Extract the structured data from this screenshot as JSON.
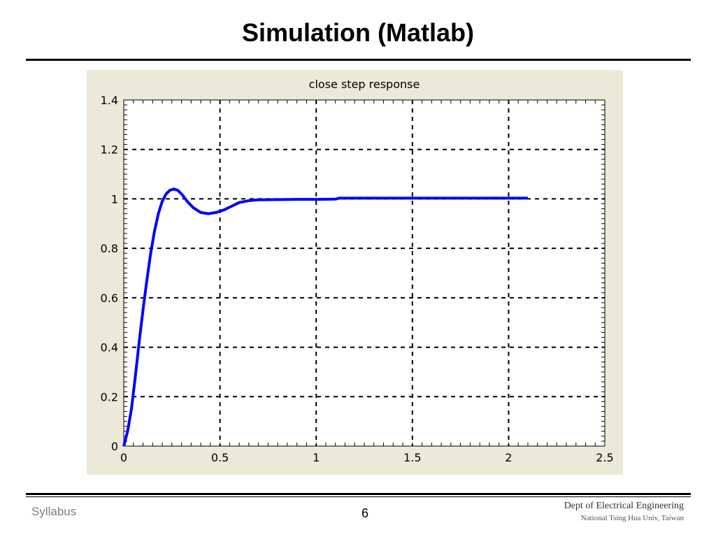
{
  "slide": {
    "title": "Simulation (Matlab)"
  },
  "footer": {
    "left": "Syllabus",
    "page": "6",
    "dept": "Dept of Electrical Engineering",
    "univ": "National Tsing Hua Univ, Taiwan"
  },
  "colors": {
    "figure_background": "#ece9d8",
    "line": "#0000ff",
    "grid": "#000000"
  },
  "chart_data": {
    "type": "line",
    "title": "close step response",
    "xlabel": "",
    "ylabel": "",
    "xlim": [
      0,
      2.5
    ],
    "ylim": [
      0,
      1.4
    ],
    "xticks": [
      0,
      0.5,
      1,
      1.5,
      2,
      2.5
    ],
    "xtick_labels": [
      "0",
      "0.5",
      "1",
      "1.5",
      "2",
      "2.5"
    ],
    "yticks": [
      0,
      0.2,
      0.4,
      0.6,
      0.8,
      1,
      1.2,
      1.4
    ],
    "ytick_labels": [
      "0",
      "0.2",
      "0.4",
      "0.6",
      "0.8",
      "1",
      "1.2",
      "1.4"
    ],
    "grid": true,
    "grid_style": "dashed",
    "series": [
      {
        "x": [
          0,
          0.02,
          0.04,
          0.06,
          0.08,
          0.1,
          0.12,
          0.14,
          0.16,
          0.18,
          0.2,
          0.22,
          0.24,
          0.26,
          0.28,
          0.3,
          0.33,
          0.36,
          0.4,
          0.44,
          0.48,
          0.52,
          0.56,
          0.6,
          0.65,
          0.7,
          0.8,
          0.9,
          1.0,
          1.1,
          1.12,
          1.3,
          1.5,
          1.7,
          1.9,
          2.1
        ],
        "y": [
          0,
          0.06,
          0.15,
          0.28,
          0.42,
          0.55,
          0.67,
          0.78,
          0.87,
          0.94,
          0.99,
          1.02,
          1.035,
          1.04,
          1.035,
          1.02,
          0.99,
          0.965,
          0.945,
          0.94,
          0.945,
          0.955,
          0.97,
          0.985,
          0.993,
          0.996,
          0.997,
          0.998,
          0.998,
          0.999,
          1.003,
          1.003,
          1.003,
          1.003,
          1.003,
          1.003
        ]
      }
    ]
  }
}
